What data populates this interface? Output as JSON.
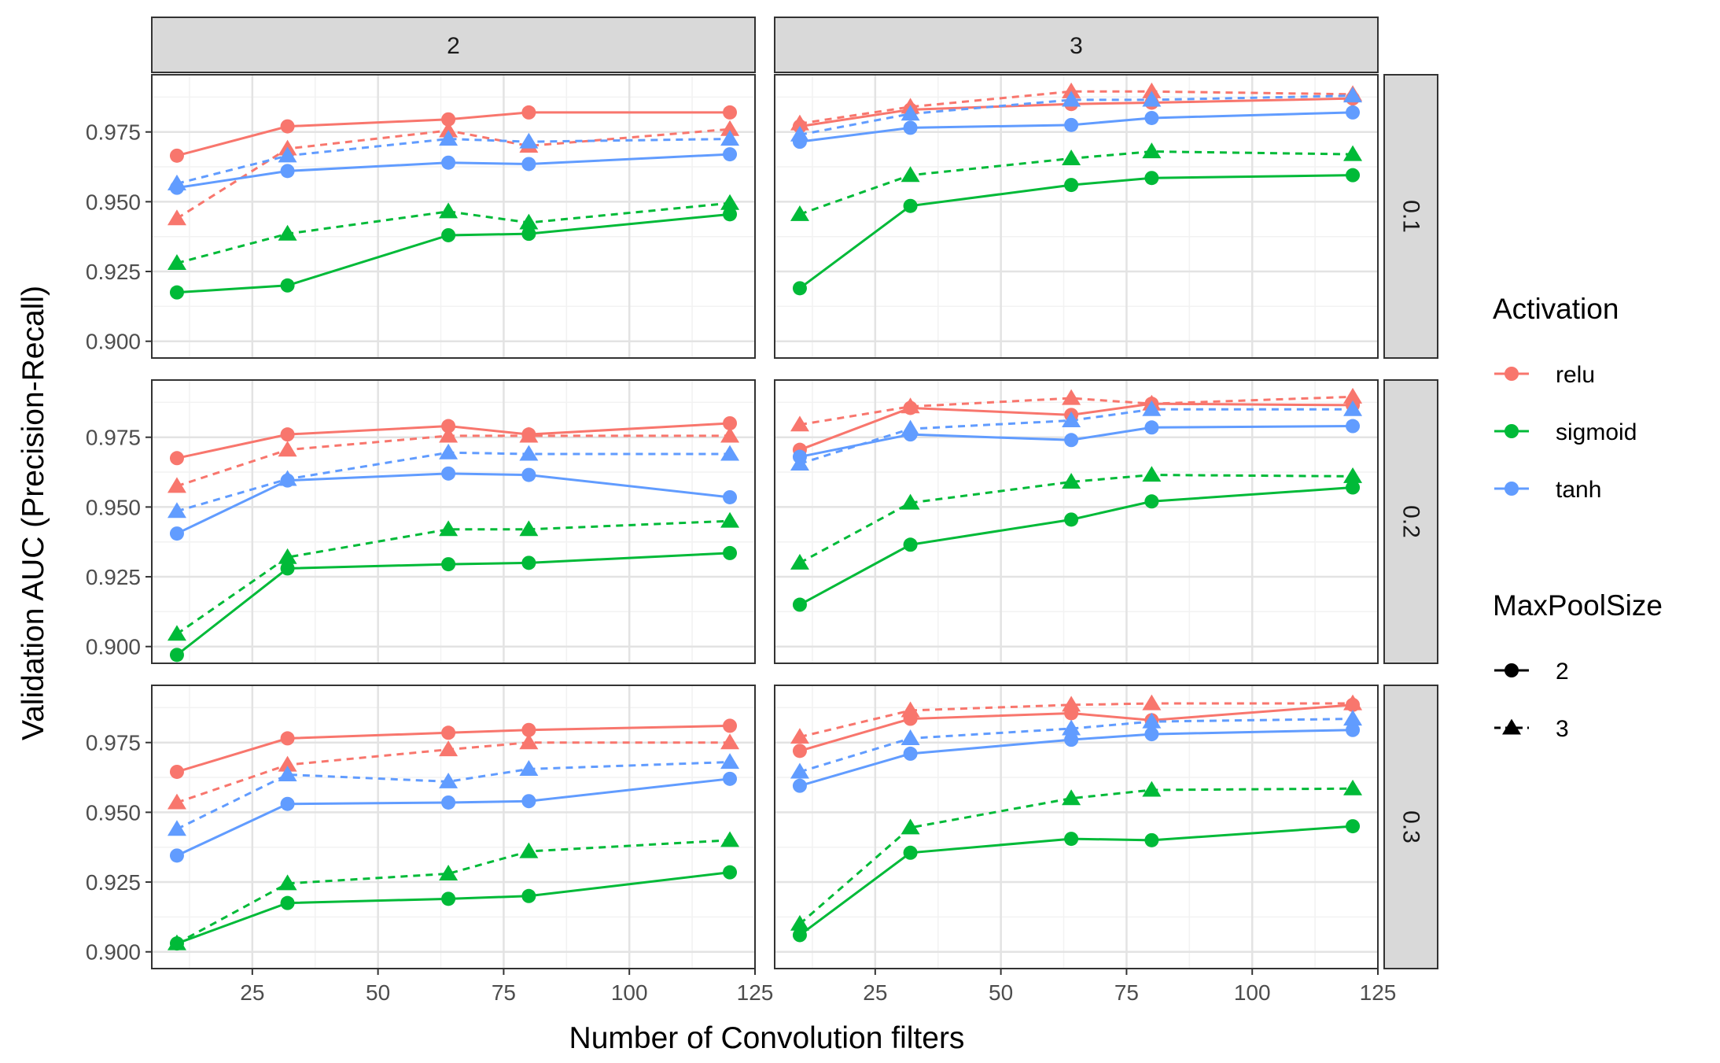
{
  "chart_data": {
    "type": "line",
    "xlabel": "Number of Convolution filters",
    "ylabel": "Validation AUC (Precision-Recall)",
    "xlim": [
      5,
      125
    ],
    "ylim": [
      0.894,
      0.9955
    ],
    "x_ticks": [
      25,
      50,
      75,
      100,
      125
    ],
    "y_ticks": [
      0.9,
      0.925,
      0.95,
      0.975
    ],
    "x_tick_labels": [
      "25",
      "50",
      "75",
      "100",
      "125"
    ],
    "y_tick_labels": [
      "0.900",
      "0.925",
      "0.950",
      "0.975"
    ],
    "grid": true,
    "facet_cols": [
      "2",
      "3"
    ],
    "facet_rows": [
      "0.1",
      "0.2",
      "0.3"
    ],
    "x": [
      10,
      32,
      64,
      80,
      120
    ],
    "legend": {
      "placement": "right",
      "activation_title": "Activation",
      "activation": [
        {
          "label": "relu",
          "color": "#F8766D"
        },
        {
          "label": "sigmoid",
          "color": "#00BA38"
        },
        {
          "label": "tanh",
          "color": "#619CFF"
        }
      ],
      "maxpool_title": "MaxPoolSize",
      "maxpool": [
        {
          "label": "2",
          "shape": "circle",
          "line": "solid"
        },
        {
          "label": "3",
          "shape": "triangle",
          "line": "dashed"
        }
      ]
    },
    "panels": [
      {
        "col": "2",
        "row": "0.1",
        "series": [
          {
            "activation": "relu",
            "maxpool": "2",
            "values": [
              0.9665,
              0.977,
              0.9795,
              0.982,
              0.982
            ]
          },
          {
            "activation": "relu",
            "maxpool": "3",
            "values": [
              0.944,
              0.969,
              0.9755,
              0.97,
              0.976
            ]
          },
          {
            "activation": "sigmoid",
            "maxpool": "2",
            "values": [
              0.9175,
              0.92,
              0.938,
              0.9385,
              0.9455
            ]
          },
          {
            "activation": "sigmoid",
            "maxpool": "3",
            "values": [
              0.928,
              0.9385,
              0.9465,
              0.9425,
              0.9495
            ]
          },
          {
            "activation": "tanh",
            "maxpool": "2",
            "values": [
              0.955,
              0.961,
              0.964,
              0.9635,
              0.967
            ]
          },
          {
            "activation": "tanh",
            "maxpool": "3",
            "values": [
              0.9565,
              0.9665,
              0.9725,
              0.9715,
              0.9725
            ]
          }
        ]
      },
      {
        "col": "3",
        "row": "0.1",
        "series": [
          {
            "activation": "relu",
            "maxpool": "2",
            "values": [
              0.977,
              0.983,
              0.985,
              0.9855,
              0.987
            ]
          },
          {
            "activation": "relu",
            "maxpool": "3",
            "values": [
              0.978,
              0.984,
              0.9895,
              0.9895,
              0.9885
            ]
          },
          {
            "activation": "sigmoid",
            "maxpool": "2",
            "values": [
              0.919,
              0.9485,
              0.956,
              0.9585,
              0.9595
            ]
          },
          {
            "activation": "sigmoid",
            "maxpool": "3",
            "values": [
              0.9455,
              0.9595,
              0.9655,
              0.968,
              0.967
            ]
          },
          {
            "activation": "tanh",
            "maxpool": "2",
            "values": [
              0.9715,
              0.9765,
              0.9775,
              0.98,
              0.982
            ]
          },
          {
            "activation": "tanh",
            "maxpool": "3",
            "values": [
              0.974,
              0.9815,
              0.9865,
              0.9865,
              0.988
            ]
          }
        ]
      },
      {
        "col": "2",
        "row": "0.2",
        "series": [
          {
            "activation": "relu",
            "maxpool": "2",
            "values": [
              0.9675,
              0.976,
              0.979,
              0.976,
              0.98
            ]
          },
          {
            "activation": "relu",
            "maxpool": "3",
            "values": [
              0.9575,
              0.9705,
              0.9755,
              0.9755,
              0.9755
            ]
          },
          {
            "activation": "sigmoid",
            "maxpool": "2",
            "values": [
              0.897,
              0.928,
              0.9295,
              0.93,
              0.9335
            ]
          },
          {
            "activation": "sigmoid",
            "maxpool": "3",
            "values": [
              0.9045,
              0.932,
              0.942,
              0.942,
              0.945
            ]
          },
          {
            "activation": "tanh",
            "maxpool": "2",
            "values": [
              0.9405,
              0.9595,
              0.962,
              0.9615,
              0.9535
            ]
          },
          {
            "activation": "tanh",
            "maxpool": "3",
            "values": [
              0.9485,
              0.96,
              0.9695,
              0.969,
              0.969
            ]
          }
        ]
      },
      {
        "col": "3",
        "row": "0.2",
        "series": [
          {
            "activation": "relu",
            "maxpool": "2",
            "values": [
              0.9705,
              0.9855,
              0.983,
              0.987,
              0.9865
            ]
          },
          {
            "activation": "relu",
            "maxpool": "3",
            "values": [
              0.9795,
              0.986,
              0.989,
              0.987,
              0.9895
            ]
          },
          {
            "activation": "sigmoid",
            "maxpool": "2",
            "values": [
              0.915,
              0.9365,
              0.9455,
              0.952,
              0.957
            ]
          },
          {
            "activation": "sigmoid",
            "maxpool": "3",
            "values": [
              0.93,
              0.9515,
              0.959,
              0.9615,
              0.961
            ]
          },
          {
            "activation": "tanh",
            "maxpool": "2",
            "values": [
              0.968,
              0.976,
              0.974,
              0.9785,
              0.979
            ]
          },
          {
            "activation": "tanh",
            "maxpool": "3",
            "values": [
              0.9655,
              0.978,
              0.981,
              0.985,
              0.985
            ]
          }
        ]
      },
      {
        "col": "2",
        "row": "0.3",
        "series": [
          {
            "activation": "relu",
            "maxpool": "2",
            "values": [
              0.9645,
              0.9765,
              0.9785,
              0.9795,
              0.981
            ]
          },
          {
            "activation": "relu",
            "maxpool": "3",
            "values": [
              0.9535,
              0.967,
              0.9725,
              0.975,
              0.975
            ]
          },
          {
            "activation": "sigmoid",
            "maxpool": "2",
            "values": [
              0.903,
              0.9175,
              0.919,
              0.92,
              0.9285
            ]
          },
          {
            "activation": "sigmoid",
            "maxpool": "3",
            "values": [
              0.903,
              0.9245,
              0.928,
              0.936,
              0.94
            ]
          },
          {
            "activation": "tanh",
            "maxpool": "2",
            "values": [
              0.9345,
              0.953,
              0.9535,
              0.954,
              0.962
            ]
          },
          {
            "activation": "tanh",
            "maxpool": "3",
            "values": [
              0.944,
              0.9635,
              0.961,
              0.9655,
              0.968
            ]
          }
        ]
      },
      {
        "col": "3",
        "row": "0.3",
        "series": [
          {
            "activation": "relu",
            "maxpool": "2",
            "values": [
              0.972,
              0.9835,
              0.9855,
              0.983,
              0.9885
            ]
          },
          {
            "activation": "relu",
            "maxpool": "3",
            "values": [
              0.977,
              0.9865,
              0.9885,
              0.989,
              0.989
            ]
          },
          {
            "activation": "sigmoid",
            "maxpool": "2",
            "values": [
              0.906,
              0.9355,
              0.9405,
              0.94,
              0.945
            ]
          },
          {
            "activation": "sigmoid",
            "maxpool": "3",
            "values": [
              0.91,
              0.9445,
              0.955,
              0.958,
              0.9585
            ]
          },
          {
            "activation": "tanh",
            "maxpool": "2",
            "values": [
              0.9595,
              0.971,
              0.976,
              0.978,
              0.9795
            ]
          },
          {
            "activation": "tanh",
            "maxpool": "3",
            "values": [
              0.9645,
              0.9765,
              0.98,
              0.9825,
              0.9835
            ]
          }
        ]
      }
    ]
  }
}
